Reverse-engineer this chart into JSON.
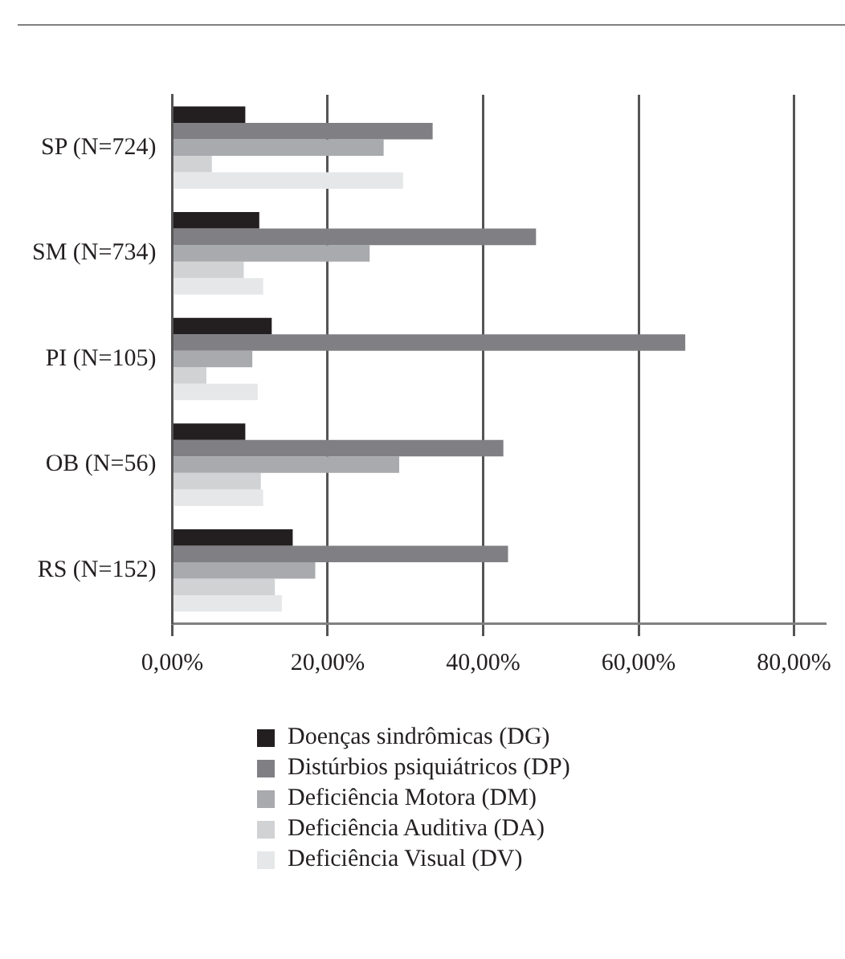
{
  "chart_data": {
    "type": "bar",
    "orientation": "horizontal",
    "categories": [
      "SP (N=724)",
      "SM (N=734)",
      "PI (N=105)",
      "OB (N=56)",
      "RS (N=152)"
    ],
    "series": [
      {
        "name": "Doenças sindrômicas (DG)",
        "color": "#231f20",
        "values": [
          9.4,
          11.2,
          12.8,
          9.4,
          15.5
        ]
      },
      {
        "name": "Distúrbios psiquiátricos (DP)",
        "color": "#808084",
        "values": [
          33.5,
          46.8,
          66.0,
          42.6,
          43.2
        ]
      },
      {
        "name": "Deficiência Motora (DM)",
        "color": "#a9aaad",
        "values": [
          27.2,
          25.4,
          10.3,
          29.2,
          18.4
        ]
      },
      {
        "name": "Deficiência Auditiva (DA)",
        "color": "#d1d2d4",
        "values": [
          5.1,
          9.2,
          4.4,
          11.4,
          13.2
        ]
      },
      {
        "name": "Deficiência Visual (DV)",
        "color": "#e6e7e8",
        "values": [
          29.7,
          11.7,
          11.0,
          11.7,
          14.1
        ]
      }
    ],
    "xlim": [
      0,
      84
    ],
    "xticks": [
      {
        "value": 0,
        "label": "0,00%"
      },
      {
        "value": 20,
        "label": "20,00%"
      },
      {
        "value": 40,
        "label": "40,00%"
      },
      {
        "value": 60,
        "label": "60,00%"
      },
      {
        "value": 80,
        "label": "80,00%"
      }
    ],
    "grid": "x",
    "legend": "bottom"
  }
}
